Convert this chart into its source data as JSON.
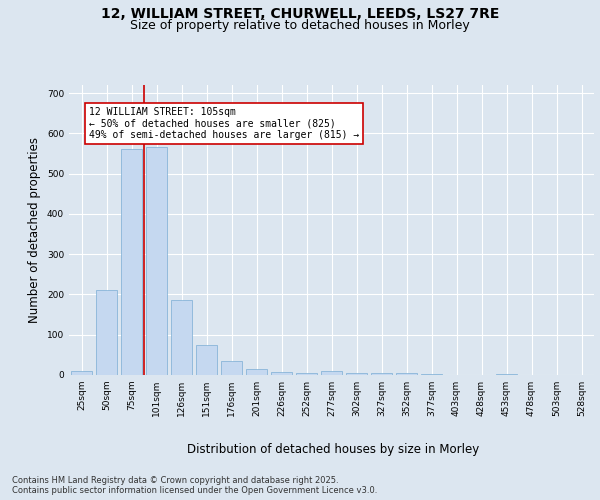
{
  "title_line1": "12, WILLIAM STREET, CHURWELL, LEEDS, LS27 7RE",
  "title_line2": "Size of property relative to detached houses in Morley",
  "xlabel": "Distribution of detached houses by size in Morley",
  "ylabel": "Number of detached properties",
  "categories": [
    "25sqm",
    "50sqm",
    "75sqm",
    "101sqm",
    "126sqm",
    "151sqm",
    "176sqm",
    "201sqm",
    "226sqm",
    "252sqm",
    "277sqm",
    "302sqm",
    "327sqm",
    "352sqm",
    "377sqm",
    "403sqm",
    "428sqm",
    "453sqm",
    "478sqm",
    "503sqm",
    "528sqm"
  ],
  "values": [
    10,
    210,
    560,
    565,
    185,
    75,
    35,
    14,
    8,
    5,
    10,
    5,
    5,
    4,
    2,
    0,
    0,
    2,
    0,
    0,
    0
  ],
  "bar_color": "#c5d8f0",
  "bar_edge_color": "#7badd4",
  "vline_index": 3,
  "vline_color": "#cc0000",
  "annotation_text": "12 WILLIAM STREET: 105sqm\n← 50% of detached houses are smaller (825)\n49% of semi-detached houses are larger (815) →",
  "ylim": [
    0,
    720
  ],
  "yticks": [
    0,
    100,
    200,
    300,
    400,
    500,
    600,
    700
  ],
  "footer_text": "Contains HM Land Registry data © Crown copyright and database right 2025.\nContains public sector information licensed under the Open Government Licence v3.0.",
  "bg_color": "#dce6f0",
  "plot_bg_color": "#dce6f0",
  "grid_color": "#ffffff",
  "title_fontsize": 10,
  "subtitle_fontsize": 9,
  "tick_fontsize": 6.5,
  "label_fontsize": 8.5,
  "footer_fontsize": 6
}
